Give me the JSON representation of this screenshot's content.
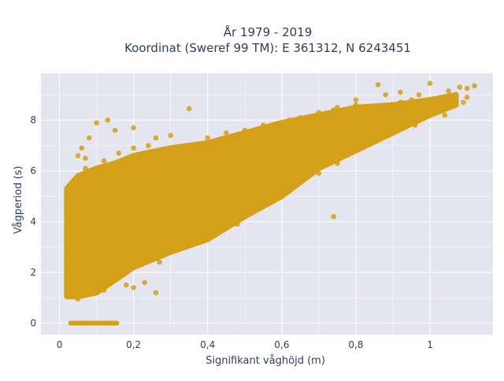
{
  "chart_data": {
    "type": "scatter",
    "title": "År 1979 - 2019",
    "subtitle": "Koordinat (Sweref 99 TM): E 361312, N 6243451",
    "xlabel": "Signifikant våghöjd (m)",
    "ylabel": "Vågperiod (s)",
    "xlim": [
      -0.05,
      1.17
    ],
    "ylim": [
      -0.45,
      9.85
    ],
    "x_ticks": [
      0,
      0.2,
      0.4,
      0.6,
      0.8,
      1
    ],
    "x_tick_labels": [
      "0",
      "0,2",
      "0,4",
      "0,6",
      "0,8",
      "1"
    ],
    "y_ticks": [
      0,
      2,
      4,
      6,
      8
    ],
    "y_tick_labels": [
      "0",
      "2",
      "4",
      "6",
      "8"
    ],
    "grid": true,
    "marker_color": "#D4A017",
    "plot_background": "#E5E5F0",
    "gridline_color": "#FFFFFF",
    "density_envelope": {
      "upper": [
        [
          0.02,
          5.3
        ],
        [
          0.05,
          5.8
        ],
        [
          0.1,
          6.1
        ],
        [
          0.15,
          6.3
        ],
        [
          0.2,
          6.6
        ],
        [
          0.3,
          6.9
        ],
        [
          0.4,
          7.1
        ],
        [
          0.5,
          7.5
        ],
        [
          0.6,
          7.9
        ],
        [
          0.7,
          8.2
        ],
        [
          0.8,
          8.5
        ],
        [
          0.9,
          8.6
        ],
        [
          1.0,
          8.8
        ],
        [
          1.07,
          9.0
        ]
      ],
      "lower": [
        [
          1.07,
          8.6
        ],
        [
          1.0,
          8.2
        ],
        [
          0.9,
          7.5
        ],
        [
          0.8,
          6.8
        ],
        [
          0.7,
          6.1
        ],
        [
          0.6,
          5.0
        ],
        [
          0.5,
          4.2
        ],
        [
          0.4,
          3.3
        ],
        [
          0.3,
          2.8
        ],
        [
          0.2,
          2.2
        ],
        [
          0.15,
          1.7
        ],
        [
          0.1,
          1.2
        ],
        [
          0.05,
          1.05
        ],
        [
          0.02,
          1.05
        ]
      ]
    },
    "zero_band": {
      "x_range": [
        0.03,
        0.155
      ],
      "y": 0
    },
    "points": [
      [
        0.13,
        8.0
      ],
      [
        0.1,
        7.9
      ],
      [
        0.2,
        7.7
      ],
      [
        0.15,
        7.6
      ],
      [
        0.35,
        8.45
      ],
      [
        0.08,
        7.3
      ],
      [
        0.3,
        7.4
      ],
      [
        0.26,
        7.3
      ],
      [
        0.05,
        6.6
      ],
      [
        0.07,
        6.5
      ],
      [
        0.12,
        6.4
      ],
      [
        0.06,
        6.9
      ],
      [
        0.16,
        6.7
      ],
      [
        0.24,
        7.0
      ],
      [
        0.4,
        7.3
      ],
      [
        0.45,
        7.5
      ],
      [
        0.5,
        7.6
      ],
      [
        0.55,
        7.8
      ],
      [
        0.62,
        8.0
      ],
      [
        0.7,
        8.3
      ],
      [
        0.75,
        8.5
      ],
      [
        0.8,
        8.6
      ],
      [
        0.86,
        9.4
      ],
      [
        0.92,
        9.1
      ],
      [
        0.95,
        8.8
      ],
      [
        0.97,
        9.0
      ],
      [
        1.0,
        9.45
      ],
      [
        1.05,
        9.15
      ],
      [
        1.08,
        9.3
      ],
      [
        1.1,
        9.25
      ],
      [
        1.12,
        9.35
      ],
      [
        1.06,
        8.85
      ],
      [
        1.09,
        8.7
      ],
      [
        1.1,
        8.9
      ],
      [
        0.99,
        8.6
      ],
      [
        1.02,
        8.4
      ],
      [
        1.04,
        8.2
      ],
      [
        0.88,
        9.0
      ],
      [
        0.92,
        8.7
      ],
      [
        0.84,
        8.3
      ],
      [
        0.74,
        8.4
      ],
      [
        0.8,
        8.8
      ],
      [
        0.65,
        8.1
      ],
      [
        0.72,
        8.0
      ],
      [
        0.58,
        5.4
      ],
      [
        0.62,
        5.6
      ],
      [
        0.6,
        6.0
      ],
      [
        0.68,
        6.2
      ],
      [
        0.7,
        5.9
      ],
      [
        0.75,
        6.3
      ],
      [
        0.74,
        4.2
      ],
      [
        0.55,
        5.2
      ],
      [
        0.45,
        4.0
      ],
      [
        0.53,
        4.6
      ],
      [
        0.44,
        3.7
      ],
      [
        0.48,
        3.9
      ],
      [
        0.66,
        5.7
      ],
      [
        0.35,
        3.3
      ],
      [
        0.3,
        3.0
      ],
      [
        0.27,
        2.4
      ],
      [
        0.25,
        2.7
      ],
      [
        0.22,
        2.3
      ],
      [
        0.18,
        1.5
      ],
      [
        0.2,
        1.4
      ],
      [
        0.23,
        1.6
      ],
      [
        0.26,
        1.2
      ],
      [
        0.05,
        0.95
      ],
      [
        0.03,
        1.4
      ],
      [
        0.04,
        1.8
      ],
      [
        0.05,
        2.3
      ],
      [
        0.02,
        4.6
      ],
      [
        0.03,
        4.9
      ],
      [
        0.05,
        5.5
      ],
      [
        0.08,
        5.8
      ],
      [
        0.11,
        6.1
      ],
      [
        0.18,
        6.4
      ],
      [
        0.2,
        6.9
      ],
      [
        0.13,
        6.2
      ],
      [
        0.07,
        6.1
      ],
      [
        0.09,
        6.0
      ],
      [
        0.1,
        2.0
      ],
      [
        0.12,
        1.3
      ],
      [
        0.14,
        1.6
      ],
      [
        0.15,
        1.9
      ],
      [
        0.06,
        1.6
      ],
      [
        0.08,
        2.5
      ],
      [
        0.04,
        3.2
      ],
      [
        0.03,
        3.7
      ],
      [
        0.94,
        8.1
      ],
      [
        0.96,
        7.8
      ]
    ]
  }
}
